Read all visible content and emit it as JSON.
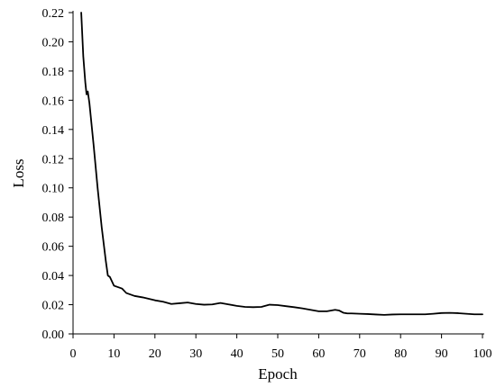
{
  "chart_data": {
    "type": "line",
    "xlabel": "Epoch",
    "ylabel": "Loss",
    "xlim": [
      0,
      100
    ],
    "ylim": [
      0,
      0.22
    ],
    "xticks": [
      "0",
      "10",
      "20",
      "30",
      "40",
      "50",
      "60",
      "70",
      "80",
      "90",
      "100"
    ],
    "yticks": [
      "0.00",
      "0.02",
      "0.04",
      "0.06",
      "0.08",
      "0.10",
      "0.12",
      "0.14",
      "0.16",
      "0.18",
      "0.20",
      "0.22"
    ],
    "grid": false,
    "series": [
      {
        "color": "#000000",
        "x": [
          2,
          2.5,
          3,
          3.3,
          3.6,
          4,
          5,
          6,
          7,
          8,
          8.5,
          9,
          10,
          11,
          12,
          13,
          15,
          17,
          20,
          22,
          24,
          26,
          28,
          30,
          32,
          34,
          36,
          38,
          40,
          42,
          44,
          46,
          48,
          50,
          52,
          54,
          56,
          58,
          60,
          62,
          64,
          65,
          66,
          67,
          68,
          70,
          72,
          74,
          76,
          78,
          80,
          82,
          84,
          86,
          88,
          90,
          92,
          94,
          96,
          98,
          100
        ],
        "y": [
          0.22,
          0.19,
          0.172,
          0.164,
          0.166,
          0.158,
          0.13,
          0.1,
          0.073,
          0.05,
          0.04,
          0.039,
          0.033,
          0.032,
          0.031,
          0.028,
          0.026,
          0.025,
          0.023,
          0.022,
          0.0205,
          0.021,
          0.0215,
          0.0205,
          0.02,
          0.0202,
          0.0212,
          0.0202,
          0.0192,
          0.0185,
          0.0183,
          0.0185,
          0.02,
          0.0197,
          0.019,
          0.0183,
          0.0175,
          0.0165,
          0.0155,
          0.0155,
          0.0165,
          0.016,
          0.0145,
          0.014,
          0.014,
          0.0138,
          0.0136,
          0.0133,
          0.013,
          0.0133,
          0.0134,
          0.0134,
          0.0134,
          0.0134,
          0.0138,
          0.0143,
          0.0144,
          0.0142,
          0.0138,
          0.0134,
          0.0134
        ]
      }
    ]
  }
}
